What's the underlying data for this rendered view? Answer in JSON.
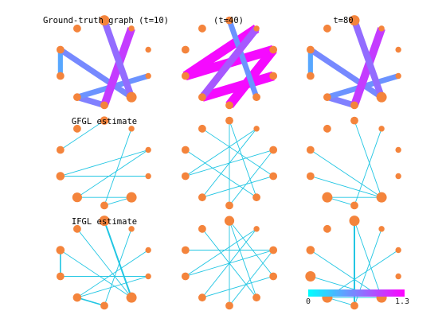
{
  "figure": {
    "titles": {
      "r0c0": "Ground-truth graph (t=10)",
      "r0c1": "(t=40)",
      "r0c2": "t=80",
      "r1c0": "GFGL estimate",
      "r2c0": "IFGL estimate"
    },
    "colorbar": {
      "min_label": "0",
      "max_label": "1.3",
      "min": 0,
      "max": 1.3,
      "colormap": "cool",
      "colors": [
        "#00ffff",
        "#ff00ff"
      ]
    },
    "node_color": "#f4843c",
    "estimate_edge_color": "#22c6e3",
    "node_count": 10,
    "panels": [
      {
        "id": "r0c0",
        "type": "ground-truth",
        "node_weights": [
          1,
          0.3,
          0.3,
          0.3,
          1,
          0.6,
          0.6,
          0.6,
          0.6,
          0.6
        ],
        "edges": [
          {
            "from": 6,
            "to": 5,
            "value": 0.65
          },
          {
            "from": 6,
            "to": 3,
            "value": 0.55
          },
          {
            "from": 7,
            "to": 8,
            "value": 0.45
          },
          {
            "from": 8,
            "to": 4,
            "value": 0.6
          },
          {
            "from": 1,
            "to": 5,
            "value": 1.0
          },
          {
            "from": 0,
            "to": 4,
            "value": 0.75
          }
        ]
      },
      {
        "id": "r0c1",
        "type": "ground-truth",
        "node_weights": [
          0.6,
          0.3,
          0.6,
          0.6,
          0.6,
          0.6,
          0.6,
          0.6,
          0.6,
          0.6
        ],
        "edges": [
          {
            "from": 1,
            "to": 7,
            "value": 1.25
          },
          {
            "from": 2,
            "to": 7,
            "value": 1.25
          },
          {
            "from": 3,
            "to": 6,
            "value": 1.25
          },
          {
            "from": 2,
            "to": 5,
            "value": 1.25
          },
          {
            "from": 0,
            "to": 4,
            "value": 0.55
          },
          {
            "from": 1,
            "to": 6,
            "value": 0.85
          }
        ]
      },
      {
        "id": "r0c2",
        "type": "ground-truth",
        "node_weights": [
          1,
          0.3,
          0.3,
          0.3,
          1,
          0.6,
          0.6,
          0.6,
          0.6,
          0.6
        ],
        "edges": [
          {
            "from": 6,
            "to": 5,
            "value": 0.65
          },
          {
            "from": 6,
            "to": 3,
            "value": 0.55
          },
          {
            "from": 7,
            "to": 8,
            "value": 0.45
          },
          {
            "from": 8,
            "to": 4,
            "value": 0.6
          },
          {
            "from": 1,
            "to": 5,
            "value": 1.0
          },
          {
            "from": 0,
            "to": 4,
            "value": 0.75
          }
        ]
      },
      {
        "id": "r1c0",
        "type": "estimate",
        "node_weights": [
          0.7,
          0.3,
          0.3,
          0.3,
          1,
          0.6,
          0.9,
          0.7,
          0.6,
          0.6
        ],
        "edges": [
          {
            "from": 7,
            "to": 2,
            "value": 1
          },
          {
            "from": 7,
            "to": 3,
            "value": 1
          },
          {
            "from": 6,
            "to": 2,
            "value": 1
          },
          {
            "from": 6,
            "to": 4,
            "value": 1
          },
          {
            "from": 5,
            "to": 4,
            "value": 1
          },
          {
            "from": 1,
            "to": 5,
            "value": 1
          },
          {
            "from": 0,
            "to": 8,
            "value": 1
          }
        ]
      },
      {
        "id": "r1c1",
        "type": "estimate",
        "node_weights": [
          0.6,
          0.3,
          0.6,
          0.6,
          0.6,
          0.6,
          0.6,
          0.6,
          0.6,
          0.6
        ],
        "edges": [
          {
            "from": 1,
            "to": 7,
            "value": 1
          },
          {
            "from": 2,
            "to": 7,
            "value": 1
          },
          {
            "from": 3,
            "to": 6,
            "value": 1
          },
          {
            "from": 2,
            "to": 5,
            "value": 1
          },
          {
            "from": 0,
            "to": 4,
            "value": 1
          },
          {
            "from": 1,
            "to": 6,
            "value": 1
          },
          {
            "from": 0,
            "to": 5,
            "value": 1
          },
          {
            "from": 8,
            "to": 4,
            "value": 1
          },
          {
            "from": 9,
            "to": 3,
            "value": 1
          }
        ]
      },
      {
        "id": "r1c2",
        "type": "estimate",
        "node_weights": [
          0.6,
          0.3,
          0.3,
          0.3,
          1,
          0.6,
          1,
          0.6,
          0.6,
          0.6
        ],
        "edges": [
          {
            "from": 6,
            "to": 4,
            "value": 1
          },
          {
            "from": 6,
            "to": 5,
            "value": 1
          },
          {
            "from": 7,
            "to": 4,
            "value": 1
          },
          {
            "from": 8,
            "to": 4,
            "value": 1
          },
          {
            "from": 1,
            "to": 5,
            "value": 1
          },
          {
            "from": 0,
            "to": 4,
            "value": 1
          }
        ]
      },
      {
        "id": "r2c0",
        "type": "estimate",
        "node_weights": [
          1,
          0.3,
          0.3,
          0.3,
          1,
          0.6,
          0.7,
          0.6,
          0.7,
          0.6
        ],
        "edges": [
          {
            "from": 6,
            "to": 5,
            "value": 1.8
          },
          {
            "from": 6,
            "to": 3,
            "value": 1
          },
          {
            "from": 7,
            "to": 8,
            "value": 1.8
          },
          {
            "from": 8,
            "to": 4,
            "value": 1
          },
          {
            "from": 1,
            "to": 5,
            "value": 1
          },
          {
            "from": 0,
            "to": 4,
            "value": 2.2
          },
          {
            "from": 7,
            "to": 3,
            "value": 1
          },
          {
            "from": 6,
            "to": 2,
            "value": 1
          },
          {
            "from": 9,
            "to": 4,
            "value": 1
          }
        ]
      },
      {
        "id": "r2c1",
        "type": "estimate",
        "node_weights": [
          0.9,
          0.3,
          0.6,
          0.6,
          0.6,
          0.6,
          0.6,
          0.6,
          0.6,
          0.6
        ],
        "edges": [
          {
            "from": 1,
            "to": 7,
            "value": 1
          },
          {
            "from": 2,
            "to": 7,
            "value": 1
          },
          {
            "from": 3,
            "to": 6,
            "value": 1
          },
          {
            "from": 2,
            "to": 5,
            "value": 1
          },
          {
            "from": 0,
            "to": 4,
            "value": 1
          },
          {
            "from": 1,
            "to": 6,
            "value": 1
          },
          {
            "from": 0,
            "to": 5,
            "value": 1
          },
          {
            "from": 8,
            "to": 2,
            "value": 1
          },
          {
            "from": 9,
            "to": 4,
            "value": 1
          },
          {
            "from": 0,
            "to": 3,
            "value": 1
          }
        ]
      },
      {
        "id": "r2c2",
        "type": "estimate",
        "node_weights": [
          1,
          0.3,
          0.3,
          0.3,
          1,
          0.6,
          1,
          1,
          0.7,
          0.6
        ],
        "edges": [
          {
            "from": 6,
            "to": 4,
            "value": 1
          },
          {
            "from": 6,
            "to": 5,
            "value": 1
          },
          {
            "from": 7,
            "to": 4,
            "value": 1
          },
          {
            "from": 8,
            "to": 4,
            "value": 1
          },
          {
            "from": 1,
            "to": 5,
            "value": 1
          },
          {
            "from": 0,
            "to": 4,
            "value": 1
          },
          {
            "from": 0,
            "to": 5,
            "value": 2.2
          },
          {
            "from": 6,
            "to": 2,
            "value": 1
          }
        ]
      }
    ]
  }
}
